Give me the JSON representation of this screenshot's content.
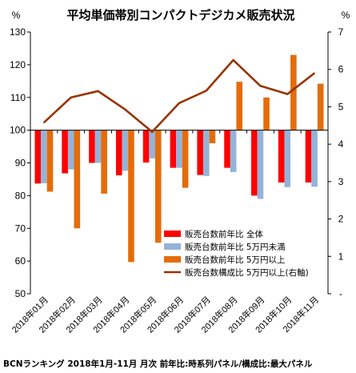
{
  "chart_data": {
    "type": "bar",
    "title": "平均単価帯別コンパクトデジカメ販売状況",
    "footer": "BCNランキング 2018年1月-11月 月次 前年比:時系列パネル/構成比:最大パネル",
    "left_unit": "%",
    "right_unit": "%",
    "ylim": [
      50,
      130
    ],
    "y_ticks": [
      "50",
      "60",
      "70",
      "80",
      "90",
      "100",
      "110",
      "120",
      "130"
    ],
    "y2lim": [
      0,
      7
    ],
    "y2_ticks": [
      "-",
      "1",
      "2",
      "3",
      "4",
      "5",
      "6",
      "7"
    ],
    "baseline": 100,
    "grid": false,
    "legend_position": "right-inside",
    "categories": [
      "2018年01月",
      "2018年02月",
      "2018年03月",
      "2018年04月",
      "2018年05月",
      "2018年06月",
      "2018年07月",
      "2018年08月",
      "2018年09月",
      "2018年10月",
      "2018年11月"
    ],
    "series": [
      {
        "name": "販売台数前年比 全体",
        "type": "bar",
        "axis": "left",
        "color": "#ff0000",
        "values": [
          83.7,
          86.8,
          90.0,
          86.2,
          90.1,
          88.5,
          86.3,
          88.5,
          80.0,
          84.0,
          84.0
        ]
      },
      {
        "name": "販売台数前年比 5万円未満",
        "type": "bar",
        "axis": "left",
        "color": "#95b3d7",
        "values": [
          83.8,
          88.0,
          90.0,
          87.6,
          91.4,
          88.5,
          86.0,
          87.2,
          79.0,
          82.6,
          82.7
        ]
      },
      {
        "name": "販売台数前年比 5万円以上",
        "type": "bar",
        "axis": "left",
        "color": "#e46c0a",
        "values": [
          81.2,
          70.0,
          80.6,
          59.7,
          65.6,
          82.4,
          96.0,
          114.8,
          110.0,
          123.0,
          114.2
        ]
      },
      {
        "name": "販売台数構成比 5万円以上(右軸)",
        "type": "line",
        "axis": "right",
        "color": "#993300",
        "values": [
          4.58,
          5.25,
          5.42,
          4.93,
          4.33,
          5.1,
          5.43,
          6.25,
          5.56,
          5.34,
          5.9
        ]
      }
    ]
  }
}
